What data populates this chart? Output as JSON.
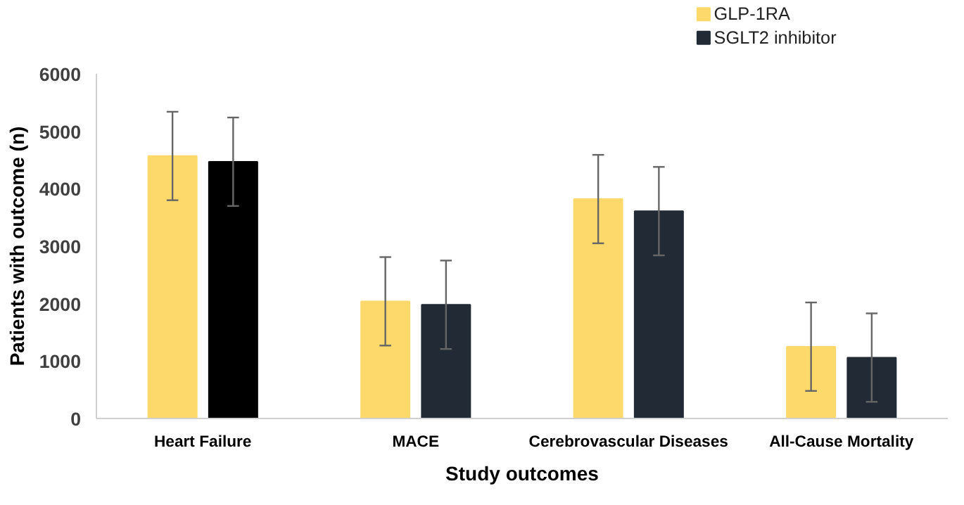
{
  "chart_data": {
    "type": "bar",
    "xlabel": "Study outcomes",
    "ylabel": "Patients with outcome (n)",
    "categories": [
      "Heart Failure",
      "MACE",
      "Cerebrovascular Diseases",
      "All-Cause Mortality"
    ],
    "series": [
      {
        "name": "GLP-1RA",
        "color": "#fcd96a",
        "values": [
          4570,
          2040,
          3820,
          1250
        ],
        "errors": [
          770,
          770,
          770,
          770
        ]
      },
      {
        "name": "SGLT2 inhibitor",
        "color": "#222a35",
        "colors": [
          "#000000",
          "#222a35",
          "#222a35",
          "#222a35"
        ],
        "values": [
          4470,
          1980,
          3610,
          1060
        ],
        "errors": [
          770,
          770,
          770,
          770
        ]
      }
    ],
    "ylim": [
      0,
      6000
    ],
    "yticks": [
      0,
      1000,
      2000,
      3000,
      4000,
      5000,
      6000
    ],
    "grid": false,
    "legend": "top right"
  }
}
